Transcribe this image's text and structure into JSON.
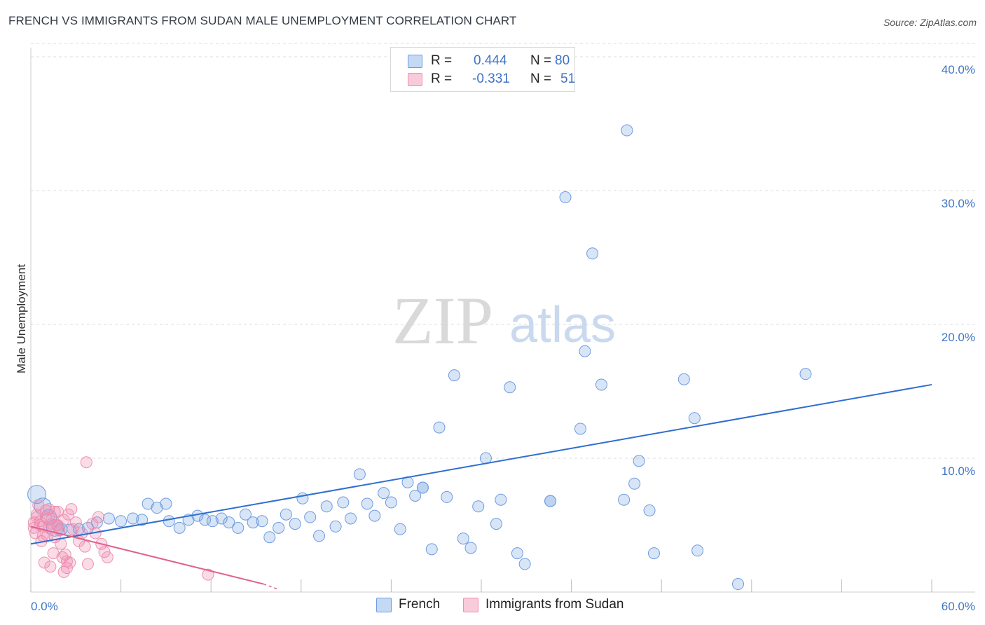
{
  "title": "FRENCH VS IMMIGRANTS FROM SUDAN MALE UNEMPLOYMENT CORRELATION CHART",
  "source": "Source: ZipAtlas.com",
  "watermark": {
    "zip": "ZIP",
    "atlas": "atlas"
  },
  "colors": {
    "french_fill": "rgba(125,170,230,0.30)",
    "french_stroke": "#6d9be0",
    "french_line": "#2f6fcf",
    "sudan_fill": "rgba(240,140,175,0.30)",
    "sudan_stroke": "#ee8fb0",
    "sudan_line": "#e0608f",
    "tick_text": "#3d74c4",
    "grid": "#dddddd"
  },
  "legend": {
    "french": {
      "r_label": "R =",
      "r_value": "0.444",
      "n_label": "N =",
      "n_value": "80"
    },
    "sudan": {
      "r_label": "R =",
      "r_value": "-0.331",
      "n_label": "N =",
      "n_value": "51"
    }
  },
  "bottom_legend": {
    "french": "French",
    "sudan": "Immigrants from Sudan"
  },
  "chart_data": {
    "type": "scatter",
    "title": "FRENCH VS IMMIGRANTS FROM SUDAN MALE UNEMPLOYMENT CORRELATION CHART",
    "xlabel": "",
    "ylabel": "Male Unemployment",
    "xlim": [
      0,
      60
    ],
    "ylim": [
      0,
      42
    ],
    "x_tick_labels": {
      "left": "0.0%",
      "right": "60.0%"
    },
    "y_ticks": [
      {
        "value": 10,
        "label": "10.0%"
      },
      {
        "value": 20,
        "label": "20.0%"
      },
      {
        "value": 30,
        "label": "30.0%"
      },
      {
        "value": 40,
        "label": "40.0%"
      }
    ],
    "grid": true,
    "series": [
      {
        "name": "French",
        "trend": {
          "x0": 0,
          "y0": 3.6,
          "x1": 60,
          "y1": 15.5
        },
        "points": [
          [
            0.4,
            7.3,
            13
          ],
          [
            0.8,
            6.4,
            12
          ],
          [
            1.2,
            5.6,
            11
          ],
          [
            1.6,
            4.8,
            12
          ],
          [
            2.0,
            4.7,
            9
          ],
          [
            2.6,
            4.6,
            9
          ],
          [
            3.2,
            4.7,
            8
          ],
          [
            3.8,
            4.8,
            8
          ],
          [
            4.4,
            5.2,
            8
          ],
          [
            5.2,
            5.5,
            8
          ],
          [
            6.0,
            5.3,
            8
          ],
          [
            6.8,
            5.5,
            8
          ],
          [
            7.4,
            5.4,
            8
          ],
          [
            7.8,
            6.6,
            8
          ],
          [
            8.4,
            6.3,
            8
          ],
          [
            9.0,
            6.6,
            8
          ],
          [
            9.2,
            5.3,
            8
          ],
          [
            9.9,
            4.8,
            8
          ],
          [
            10.5,
            5.4,
            8
          ],
          [
            11.1,
            5.7,
            8
          ],
          [
            11.6,
            5.4,
            8
          ],
          [
            12.1,
            5.3,
            8
          ],
          [
            12.7,
            5.5,
            8
          ],
          [
            13.2,
            5.2,
            8
          ],
          [
            13.8,
            4.8,
            8
          ],
          [
            14.3,
            5.8,
            8
          ],
          [
            14.8,
            5.2,
            8
          ],
          [
            15.4,
            5.3,
            8
          ],
          [
            15.9,
            4.1,
            8
          ],
          [
            16.5,
            4.8,
            8
          ],
          [
            17.0,
            5.8,
            8
          ],
          [
            17.6,
            5.1,
            8
          ],
          [
            18.1,
            7.0,
            8
          ],
          [
            18.6,
            5.6,
            8
          ],
          [
            19.2,
            4.2,
            8
          ],
          [
            19.7,
            6.4,
            8
          ],
          [
            20.3,
            4.9,
            8
          ],
          [
            20.8,
            6.7,
            8
          ],
          [
            21.3,
            5.5,
            8
          ],
          [
            21.9,
            8.8,
            8
          ],
          [
            22.4,
            6.6,
            8
          ],
          [
            22.9,
            5.7,
            8
          ],
          [
            23.5,
            7.4,
            8
          ],
          [
            24.0,
            6.7,
            8
          ],
          [
            24.6,
            4.7,
            8
          ],
          [
            25.1,
            8.2,
            8
          ],
          [
            25.6,
            7.2,
            8
          ],
          [
            26.1,
            7.8,
            8
          ],
          [
            26.7,
            3.2,
            8
          ],
          [
            27.2,
            12.3,
            8
          ],
          [
            27.7,
            7.1,
            8
          ],
          [
            28.2,
            16.2,
            8
          ],
          [
            28.8,
            4.0,
            8
          ],
          [
            29.3,
            3.3,
            8
          ],
          [
            29.8,
            6.4,
            8
          ],
          [
            30.3,
            10.0,
            8
          ],
          [
            31.0,
            5.1,
            8
          ],
          [
            31.3,
            6.9,
            8
          ],
          [
            31.9,
            15.3,
            8
          ],
          [
            32.4,
            2.9,
            8
          ],
          [
            32.9,
            2.1,
            8
          ],
          [
            34.6,
            6.8,
            8
          ],
          [
            35.6,
            29.5,
            8
          ],
          [
            36.6,
            12.2,
            8
          ],
          [
            36.9,
            18.0,
            8
          ],
          [
            37.4,
            25.3,
            8
          ],
          [
            38.0,
            15.5,
            8
          ],
          [
            39.5,
            6.9,
            8
          ],
          [
            40.2,
            8.1,
            8
          ],
          [
            40.5,
            9.8,
            8
          ],
          [
            41.2,
            6.1,
            8
          ],
          [
            41.5,
            2.9,
            8
          ],
          [
            39.7,
            34.5,
            8
          ],
          [
            43.5,
            15.9,
            8
          ],
          [
            44.2,
            13.0,
            8
          ],
          [
            44.4,
            3.1,
            8
          ],
          [
            47.1,
            0.6,
            8
          ],
          [
            51.6,
            16.3,
            8
          ],
          [
            34.6,
            6.8,
            8
          ],
          [
            26.1,
            7.8,
            8
          ]
        ]
      },
      {
        "name": "Immigrants from Sudan",
        "trend": {
          "x0": 0,
          "y0": 4.9,
          "x1": 15.5,
          "y1": 0.6
        },
        "points": [
          [
            0.2,
            5.2,
            8
          ],
          [
            0.3,
            4.4,
            8
          ],
          [
            0.4,
            5.8,
            8
          ],
          [
            0.5,
            6.5,
            8
          ],
          [
            0.6,
            5.3,
            8
          ],
          [
            0.7,
            3.8,
            8
          ],
          [
            0.8,
            4.9,
            8
          ],
          [
            0.9,
            2.2,
            8
          ],
          [
            1.0,
            5.6,
            8
          ],
          [
            1.1,
            4.2,
            8
          ],
          [
            1.2,
            6.2,
            8
          ],
          [
            1.3,
            1.9,
            8
          ],
          [
            1.4,
            5.5,
            8
          ],
          [
            1.5,
            2.9,
            8
          ],
          [
            1.6,
            4.1,
            8
          ],
          [
            1.7,
            5.0,
            8
          ],
          [
            1.8,
            6.0,
            8
          ],
          [
            1.9,
            4.6,
            8
          ],
          [
            2.0,
            3.6,
            8
          ],
          [
            2.1,
            2.6,
            8
          ],
          [
            2.2,
            5.4,
            8
          ],
          [
            2.3,
            2.8,
            8
          ],
          [
            2.4,
            1.8,
            8
          ],
          [
            2.5,
            5.8,
            8
          ],
          [
            2.6,
            2.2,
            8
          ],
          [
            2.7,
            6.2,
            8
          ],
          [
            2.8,
            4.7,
            8
          ],
          [
            3.0,
            5.2,
            8
          ],
          [
            3.2,
            3.8,
            8
          ],
          [
            3.4,
            4.4,
            8
          ],
          [
            3.6,
            3.4,
            8
          ],
          [
            3.8,
            2.1,
            8
          ],
          [
            3.7,
            9.7,
            8
          ],
          [
            4.1,
            5.1,
            8
          ],
          [
            4.3,
            4.4,
            8
          ],
          [
            4.5,
            5.6,
            8
          ],
          [
            4.7,
            3.6,
            8
          ],
          [
            4.9,
            3.0,
            8
          ],
          [
            5.1,
            2.6,
            8
          ],
          [
            11.8,
            1.3,
            8
          ],
          [
            0.2,
            4.8,
            8
          ],
          [
            0.4,
            5.6,
            8
          ],
          [
            0.6,
            5.0,
            8
          ],
          [
            0.8,
            4.2,
            8
          ],
          [
            1.0,
            6.1,
            8
          ],
          [
            1.2,
            4.8,
            8
          ],
          [
            1.4,
            5.1,
            8
          ],
          [
            1.6,
            6.0,
            8
          ],
          [
            1.8,
            5.0,
            8
          ],
          [
            2.2,
            1.5,
            8
          ],
          [
            2.4,
            2.3,
            8
          ]
        ]
      }
    ]
  }
}
